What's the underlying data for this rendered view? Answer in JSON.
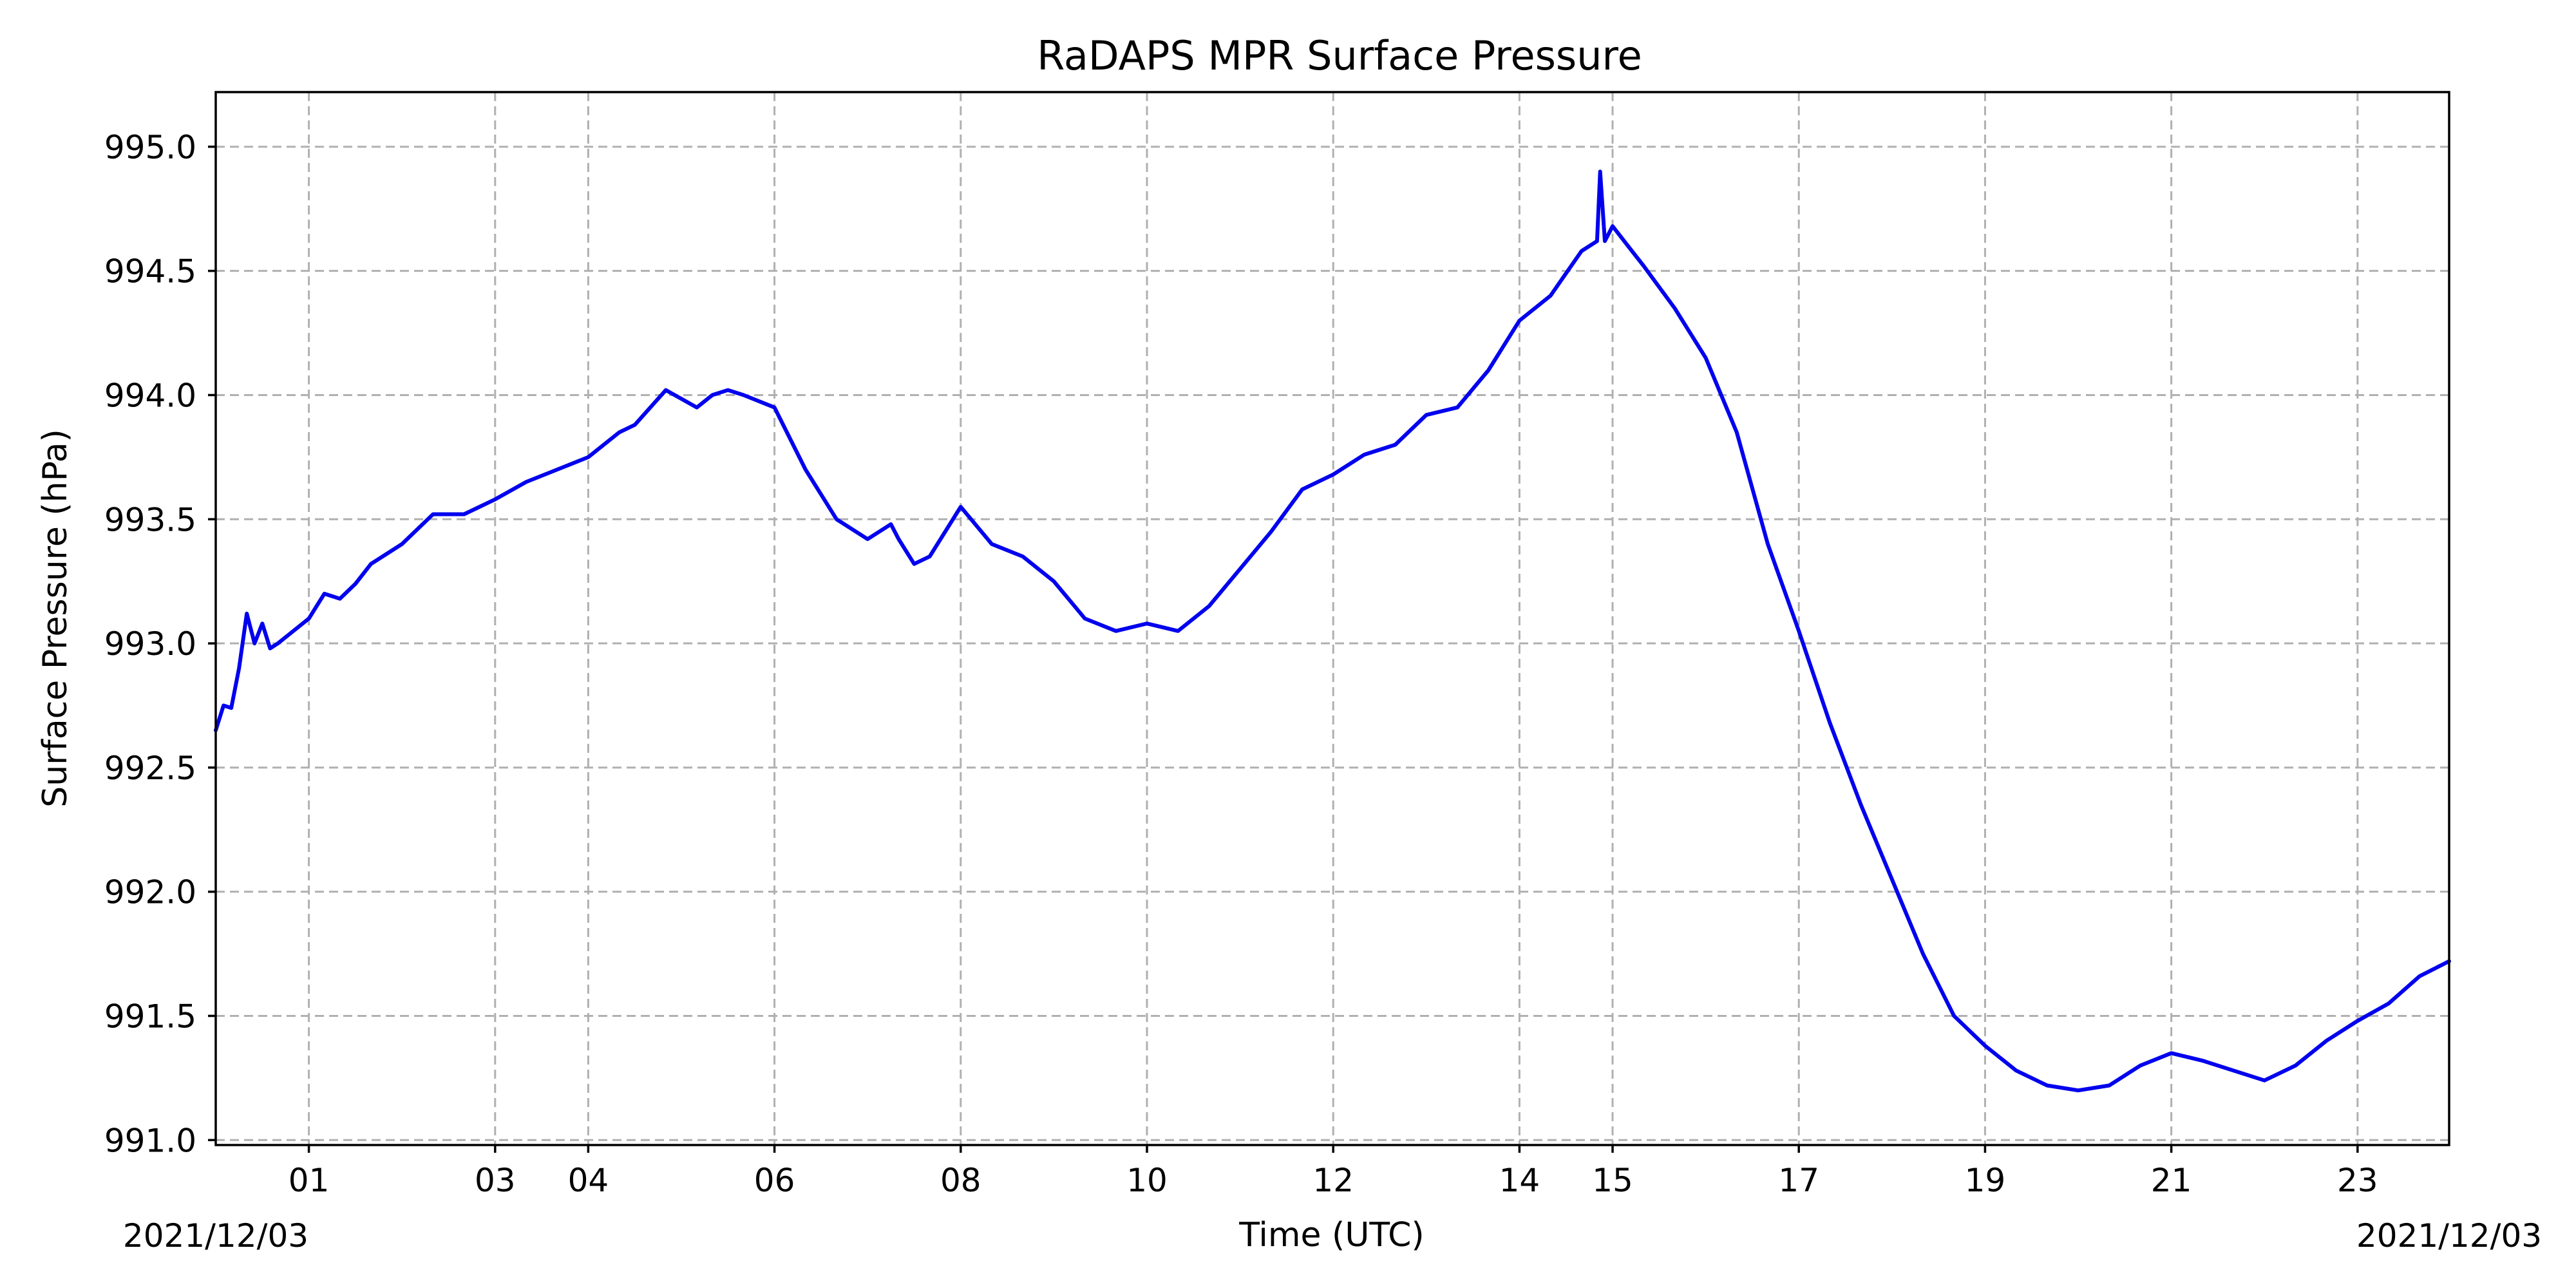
{
  "chart_data": {
    "type": "line",
    "title": "RaDAPS MPR Surface Pressure",
    "xlabel": "Time (UTC)",
    "ylabel": "Surface Pressure (hPa)",
    "date_start_label": "2021/12/03",
    "date_end_label": "2021/12/03",
    "xlim": [
      "2021-12-03T00:00",
      "2021-12-03T23:59"
    ],
    "ylim": [
      990.98,
      995.22
    ],
    "yticks": [
      991.0,
      991.5,
      992.0,
      992.5,
      993.0,
      993.5,
      994.0,
      994.5,
      995.0
    ],
    "ytick_labels": [
      "991.0",
      "991.5",
      "992.0",
      "992.5",
      "993.0",
      "993.5",
      "994.0",
      "994.5",
      "995.0"
    ],
    "xticks": [
      "2021-12-03T01:00",
      "2021-12-03T03:00",
      "2021-12-03T04:00",
      "2021-12-03T06:00",
      "2021-12-03T08:00",
      "2021-12-03T10:00",
      "2021-12-03T12:00",
      "2021-12-03T14:00",
      "2021-12-03T15:00",
      "2021-12-03T17:00",
      "2021-12-03T19:00",
      "2021-12-03T21:00",
      "2021-12-03T23:00"
    ],
    "xtick_labels": [
      "01",
      "03",
      "04",
      "06",
      "08",
      "10",
      "12",
      "14",
      "15",
      "17",
      "19",
      "21",
      "23"
    ],
    "grid": true,
    "series": [
      {
        "color": "#0000ee",
        "x": [
          "2021-12-03T00:00",
          "2021-12-03T00:05",
          "2021-12-03T00:10",
          "2021-12-03T00:15",
          "2021-12-03T00:20",
          "2021-12-03T00:25",
          "2021-12-03T00:30",
          "2021-12-03T00:35",
          "2021-12-03T00:40",
          "2021-12-03T00:50",
          "2021-12-03T01:00",
          "2021-12-03T01:10",
          "2021-12-03T01:20",
          "2021-12-03T01:30",
          "2021-12-03T01:40",
          "2021-12-03T02:00",
          "2021-12-03T02:20",
          "2021-12-03T02:40",
          "2021-12-03T03:00",
          "2021-12-03T03:20",
          "2021-12-03T03:40",
          "2021-12-03T04:00",
          "2021-12-03T04:20",
          "2021-12-03T04:30",
          "2021-12-03T04:50",
          "2021-12-03T05:10",
          "2021-12-03T05:20",
          "2021-12-03T05:30",
          "2021-12-03T05:40",
          "2021-12-03T06:00",
          "2021-12-03T06:20",
          "2021-12-03T06:40",
          "2021-12-03T07:00",
          "2021-12-03T07:15",
          "2021-12-03T07:20",
          "2021-12-03T07:30",
          "2021-12-03T07:40",
          "2021-12-03T08:00",
          "2021-12-03T08:20",
          "2021-12-03T08:40",
          "2021-12-03T09:00",
          "2021-12-03T09:20",
          "2021-12-03T09:40",
          "2021-12-03T10:00",
          "2021-12-03T10:20",
          "2021-12-03T10:40",
          "2021-12-03T11:00",
          "2021-12-03T11:20",
          "2021-12-03T11:40",
          "2021-12-03T12:00",
          "2021-12-03T12:20",
          "2021-12-03T12:40",
          "2021-12-03T13:00",
          "2021-12-03T13:20",
          "2021-12-03T13:40",
          "2021-12-03T14:00",
          "2021-12-03T14:20",
          "2021-12-03T14:40",
          "2021-12-03T14:50",
          "2021-12-03T14:52",
          "2021-12-03T14:55",
          "2021-12-03T15:00",
          "2021-12-03T15:10",
          "2021-12-03T15:20",
          "2021-12-03T15:40",
          "2021-12-03T16:00",
          "2021-12-03T16:20",
          "2021-12-03T16:40",
          "2021-12-03T17:00",
          "2021-12-03T17:20",
          "2021-12-03T17:40",
          "2021-12-03T18:00",
          "2021-12-03T18:20",
          "2021-12-03T18:40",
          "2021-12-03T19:00",
          "2021-12-03T19:20",
          "2021-12-03T19:40",
          "2021-12-03T20:00",
          "2021-12-03T20:20",
          "2021-12-03T20:40",
          "2021-12-03T21:00",
          "2021-12-03T21:20",
          "2021-12-03T21:40",
          "2021-12-03T22:00",
          "2021-12-03T22:20",
          "2021-12-03T22:40",
          "2021-12-03T23:00",
          "2021-12-03T23:20",
          "2021-12-03T23:40",
          "2021-12-03T23:59"
        ],
        "y": [
          992.65,
          992.75,
          992.74,
          992.9,
          993.12,
          993.0,
          993.08,
          992.98,
          993.0,
          993.05,
          993.1,
          993.2,
          993.18,
          993.24,
          993.32,
          993.4,
          993.52,
          993.52,
          993.58,
          993.65,
          993.7,
          993.75,
          993.85,
          993.88,
          994.02,
          993.95,
          994.0,
          994.02,
          994.0,
          993.95,
          993.7,
          993.5,
          993.42,
          993.48,
          993.42,
          993.32,
          993.35,
          993.55,
          993.4,
          993.35,
          993.25,
          993.1,
          993.05,
          993.08,
          993.05,
          993.15,
          993.3,
          993.45,
          993.62,
          993.68,
          993.76,
          993.8,
          993.92,
          993.95,
          994.1,
          994.3,
          994.4,
          994.58,
          994.62,
          994.9,
          994.62,
          994.68,
          994.6,
          994.52,
          994.35,
          994.15,
          993.85,
          993.4,
          993.05,
          992.68,
          992.35,
          992.05,
          991.75,
          991.5,
          991.38,
          991.28,
          991.22,
          991.2,
          991.22,
          991.3,
          991.35,
          991.32,
          991.28,
          991.24,
          991.3,
          991.4,
          991.48,
          991.55,
          991.66,
          991.72
        ]
      }
    ]
  }
}
